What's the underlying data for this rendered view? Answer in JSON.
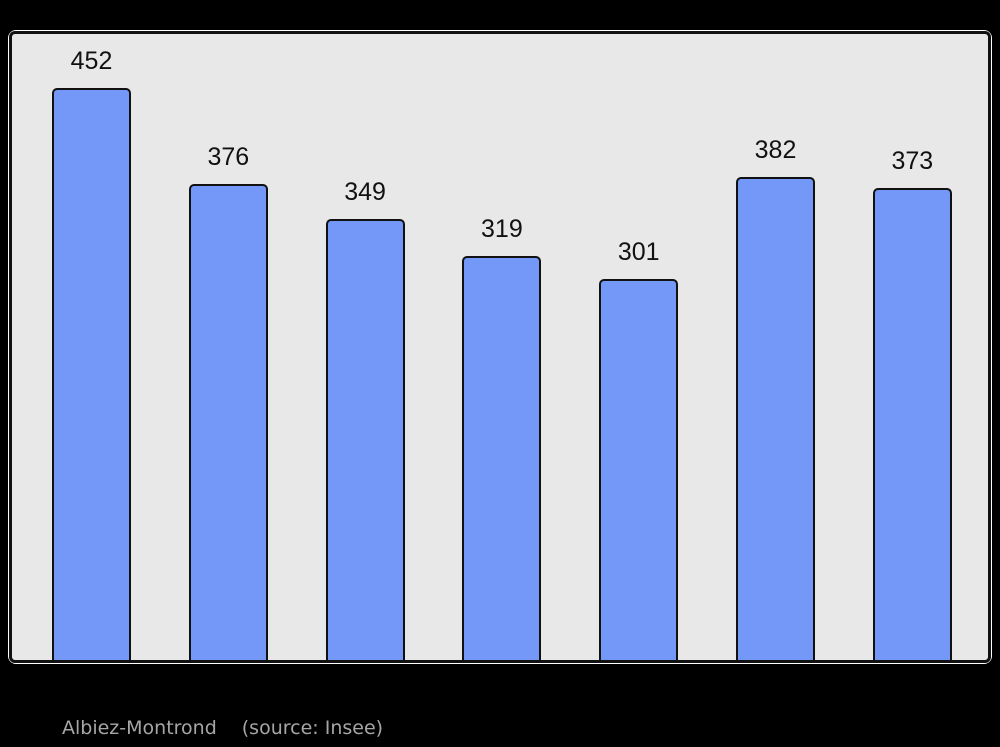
{
  "caption": {
    "location": "Albiez-Montrond",
    "source": "(source: Insee)",
    "text_color": "#a6a6a6"
  },
  "colors": {
    "page_background": "#000000",
    "figure_edge": "#ffffff",
    "plot_background": "#e8e8e8",
    "plot_border": "#111111",
    "bar_fill": "#7398f8",
    "bar_border": "#111111",
    "value_label_color": "#111111"
  },
  "chart_data": {
    "type": "bar",
    "title": "",
    "xlabel": "",
    "ylabel": "",
    "values": [
      452,
      376,
      349,
      319,
      301,
      382,
      373
    ],
    "data_labels": [
      "452",
      "376",
      "349",
      "319",
      "301",
      "382",
      "373"
    ],
    "ylim": [
      0,
      495
    ],
    "grid": false,
    "legend": false,
    "axis_tick_labels_visible": false,
    "bar_count": 7
  }
}
